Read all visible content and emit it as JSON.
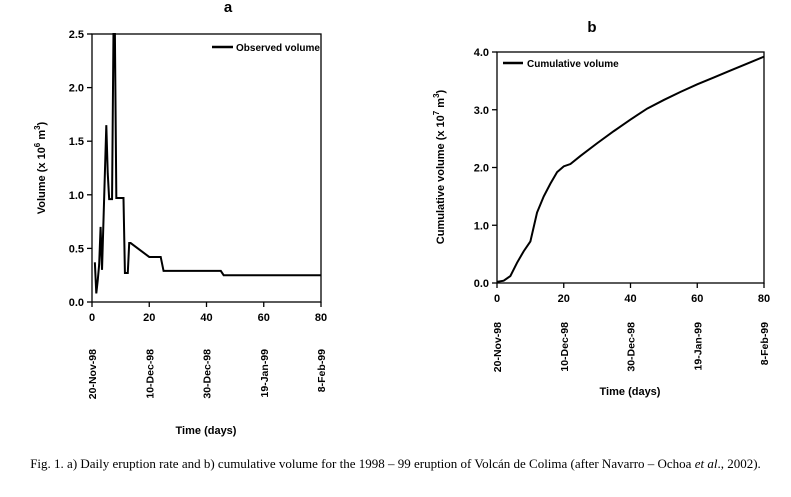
{
  "caption": {
    "part1": "Fig. 1. a) Daily eruption rate and b) cumulative volume for the 1998 – 99 eruption of Volcán de Colima (after Navarro – Ochoa ",
    "etal": "et al",
    "part2": "., 2002)."
  },
  "chart_data": [
    {
      "type": "line",
      "panel": "a",
      "legend": "Observed volume",
      "legend_position": "top-right",
      "xlabel": "Time (days)",
      "ylabel": {
        "main": "Volume (x 10",
        "exp1": "6",
        "mid": " m",
        "exp2": "3",
        "end": ")"
      },
      "xlim": [
        0,
        80
      ],
      "ylim": [
        0,
        2.5
      ],
      "x_ticks": [
        "0",
        "20",
        "40",
        "60",
        "80"
      ],
      "y_ticks": [
        "0.0",
        "0.5",
        "1.0",
        "1.5",
        "2.0",
        "2.5"
      ],
      "date_labels": [
        {
          "x": 0,
          "label": "20-Nov-98"
        },
        {
          "x": 20,
          "label": "10-Dec-98"
        },
        {
          "x": 40,
          "label": "30-Dec-98"
        },
        {
          "x": 60,
          "label": "19-Jan-99"
        },
        {
          "x": 80,
          "label": "8-Feb-99"
        }
      ],
      "grid": false,
      "x": [
        1,
        1.5,
        2,
        2.5,
        3,
        3.5,
        4,
        4.5,
        5,
        5.5,
        6,
        6.5,
        7,
        7.5,
        8,
        8.5,
        10,
        10.5,
        11,
        11.5,
        12,
        12.5,
        13,
        13.5,
        20,
        20.5,
        21,
        24,
        25,
        26,
        27,
        45,
        46,
        59,
        60,
        80
      ],
      "y": [
        0.37,
        0.08,
        0.2,
        0.35,
        0.7,
        0.3,
        0.75,
        1.2,
        1.65,
        1.2,
        0.96,
        0.96,
        0.96,
        2.5,
        2.5,
        0.97,
        0.97,
        0.97,
        0.97,
        0.27,
        0.27,
        0.27,
        0.55,
        0.55,
        0.42,
        0.42,
        0.42,
        0.42,
        0.29,
        0.29,
        0.29,
        0.29,
        0.25,
        0.25,
        0.25,
        0.25
      ]
    },
    {
      "type": "line",
      "panel": "b",
      "legend": "Cumulative volume",
      "legend_position": "top-left",
      "xlabel": "Time (days)",
      "ylabel": {
        "main": "Cumulative volume (x 10",
        "exp1": "7",
        "mid": " m",
        "exp2": "3",
        "end": ")"
      },
      "xlim": [
        0,
        80
      ],
      "ylim": [
        0,
        4.0
      ],
      "x_ticks": [
        "0",
        "20",
        "40",
        "60",
        "80"
      ],
      "y_ticks": [
        "0.0",
        "1.0",
        "2.0",
        "3.0",
        "4.0"
      ],
      "date_labels": [
        {
          "x": 0,
          "label": "20-Nov-98"
        },
        {
          "x": 20,
          "label": "10-Dec-98"
        },
        {
          "x": 40,
          "label": "30-Dec-98"
        },
        {
          "x": 60,
          "label": "19-Jan-99"
        },
        {
          "x": 80,
          "label": "8-Feb-99"
        }
      ],
      "grid": false,
      "x": [
        0,
        2,
        4,
        6,
        8,
        10,
        12,
        14,
        16,
        18,
        20,
        22,
        25,
        30,
        35,
        40,
        45,
        50,
        55,
        60,
        65,
        70,
        75,
        80
      ],
      "y": [
        0.02,
        0.04,
        0.12,
        0.35,
        0.55,
        0.72,
        1.22,
        1.5,
        1.72,
        1.92,
        2.02,
        2.06,
        2.2,
        2.42,
        2.63,
        2.83,
        3.02,
        3.17,
        3.31,
        3.44,
        3.56,
        3.68,
        3.8,
        3.92
      ]
    }
  ]
}
